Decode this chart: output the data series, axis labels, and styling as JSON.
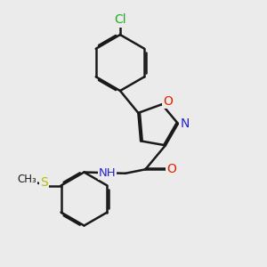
{
  "background_color": "#ebebeb",
  "bond_color": "#1a1a1a",
  "cl_color": "#22aa22",
  "o_color": "#dd2200",
  "n_color": "#2222cc",
  "s_color": "#bbbb00",
  "line_width": 1.8,
  "dbo": 0.055,
  "figsize": [
    3.0,
    3.0
  ],
  "dpi": 100,
  "xlim": [
    0,
    10
  ],
  "ylim": [
    0,
    10
  ]
}
